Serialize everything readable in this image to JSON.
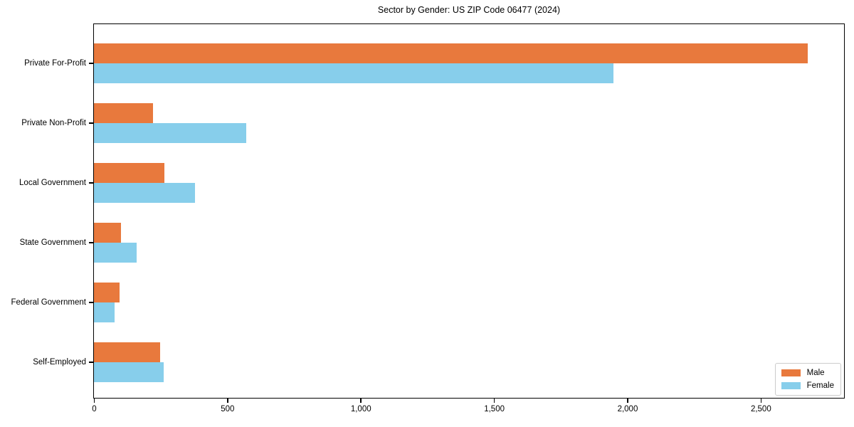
{
  "chart_data": {
    "type": "bar",
    "orientation": "horizontal",
    "title": "Sector by Gender: US ZIP Code 06477 (2024)",
    "categories": [
      "Private For-Profit",
      "Private Non-Profit",
      "Local Government",
      "State Government",
      "Federal Government",
      "Self-Employed"
    ],
    "series": [
      {
        "name": "Male",
        "color": "#e8793d",
        "values": [
          2675,
          222,
          264,
          100,
          95,
          248
        ]
      },
      {
        "name": "Female",
        "color": "#87ceeb",
        "values": [
          1945,
          570,
          378,
          159,
          76,
          261
        ]
      }
    ],
    "xlabel": "",
    "ylabel": "",
    "xlim": [
      0,
      2810
    ],
    "x_ticks": [
      0,
      500,
      1000,
      1500,
      2000,
      2500
    ],
    "x_tick_labels": [
      "0",
      "500",
      "1,000",
      "1,500",
      "2,000",
      "2,500"
    ],
    "grid": false,
    "legend": {
      "position": "lower right",
      "entries": [
        "Male",
        "Female"
      ]
    }
  },
  "colors": {
    "background": "#ffffff",
    "spine": "#000000",
    "text": "#000000",
    "legend_border": "#cccccc"
  }
}
